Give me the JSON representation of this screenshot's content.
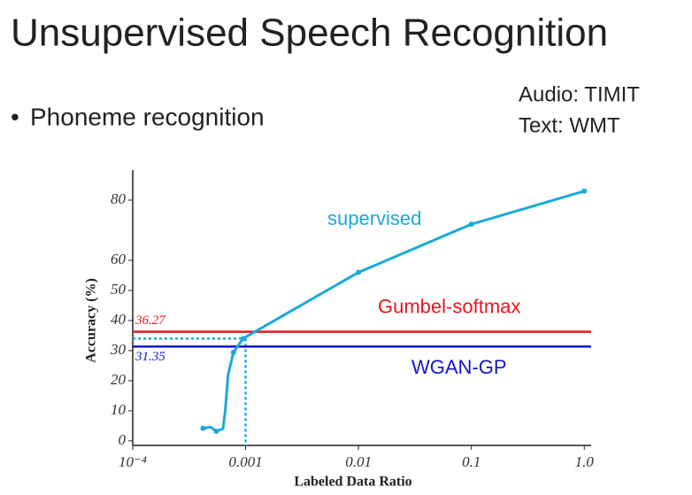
{
  "slide": {
    "title": "Unsupervised Speech Recognition",
    "bullet": "Phoneme recognition",
    "notes": [
      "Audio: TIMIT",
      "Text: WMT"
    ]
  },
  "chart_data": {
    "type": "line",
    "xscale": "log",
    "xlabel": "Labeled Data Ratio",
    "ylabel": "Accuracy (%)",
    "xlim": [
      0.0001,
      1.15
    ],
    "ylim": [
      -1.5,
      90
    ],
    "xticks": [
      {
        "value": 0.0001,
        "label": "10⁻⁴"
      },
      0.001,
      0.01,
      0.1,
      {
        "value": 1,
        "label": "1.0"
      }
    ],
    "yticks": [
      0,
      10,
      20,
      30,
      40,
      50,
      60,
      80
    ],
    "series": [
      {
        "name": "supervised",
        "color": "#1ba9d9",
        "x": [
          0.00042,
          0.00049,
          0.00055,
          0.00063,
          0.00066,
          0.0007,
          0.00078,
          0.00095,
          0.01,
          0.1,
          1
        ],
        "values": [
          4.2,
          4.6,
          3.2,
          4.0,
          10,
          22,
          29.4,
          34,
          56,
          72,
          83
        ]
      }
    ],
    "hlines": [
      {
        "name": "Gumbel-softmax",
        "value": 36.27,
        "color": "#e8141c"
      },
      {
        "name": "WGAN-GP",
        "value": 31.35,
        "color": "#1515c8"
      }
    ],
    "guide": {
      "x": 0.001,
      "y": 34,
      "color": "#1ba9d9"
    }
  }
}
